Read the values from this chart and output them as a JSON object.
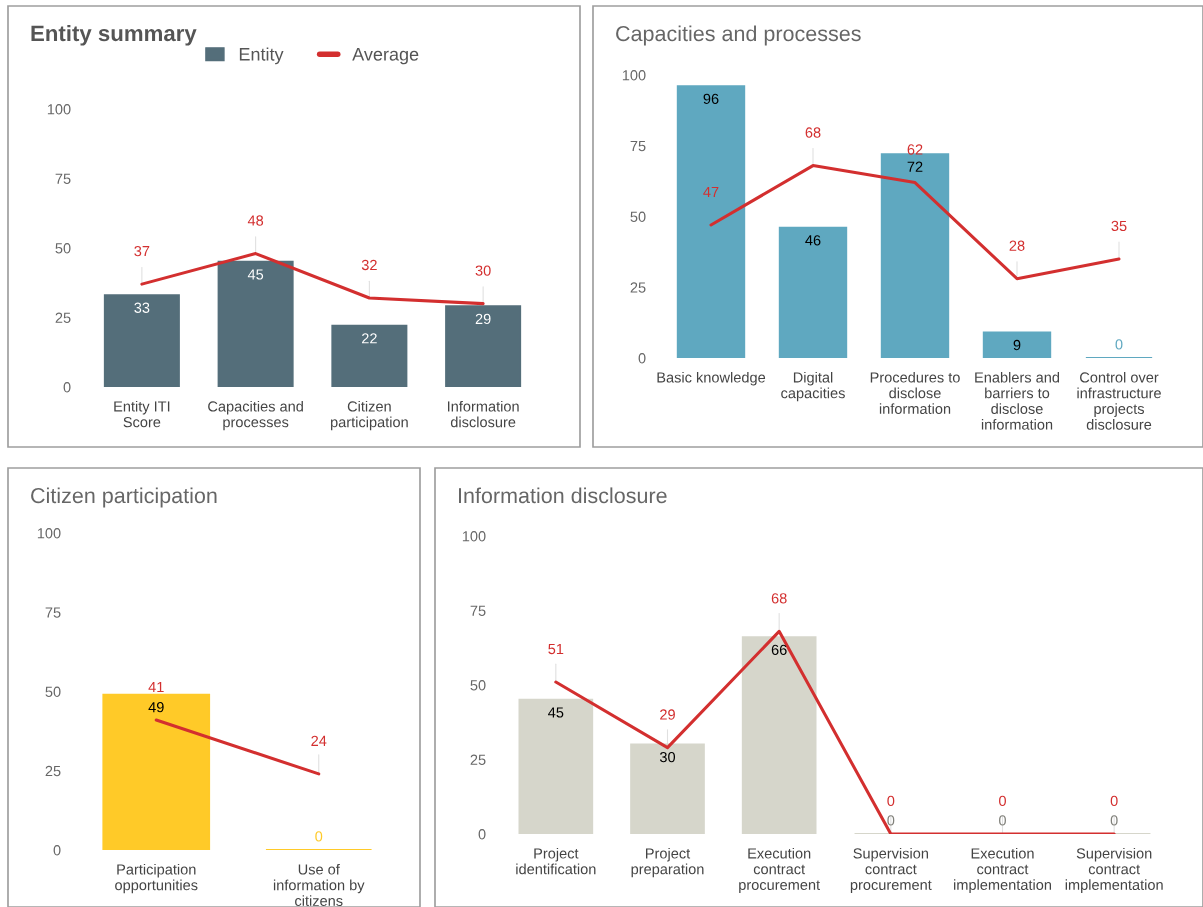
{
  "chart_data": [
    {
      "type": "bar",
      "title": "Entity summary",
      "categories": [
        "Entity ITI Score",
        "Capacities and processes",
        "Citizen participation",
        "Information disclosure"
      ],
      "ylim": [
        0,
        100
      ],
      "yticks": [
        0,
        25,
        50,
        75,
        100
      ],
      "grid": false,
      "legend": "top",
      "data_labels": true,
      "series": [
        {
          "name": "Entity",
          "color": "#546e7a",
          "values": [
            33,
            45,
            22,
            29
          ]
        },
        {
          "name": "Average",
          "type": "line",
          "color": "#d32f2f",
          "values": [
            37,
            48,
            32,
            30
          ]
        }
      ]
    },
    {
      "type": "bar",
      "title": "Capacities and processes",
      "categories": [
        "Basic knowledge",
        "Digital capacities",
        "Procedures to disclose information",
        "Enablers and barriers to disclose information",
        "Control over infrastructure projects disclosure"
      ],
      "ylim": [
        0,
        100
      ],
      "yticks": [
        0,
        25,
        50,
        75,
        100
      ],
      "grid": false,
      "data_labels": true,
      "series": [
        {
          "color": "#5fa8c0",
          "values": [
            96,
            46,
            72,
            9,
            0
          ]
        },
        {
          "type": "line",
          "color": "#d32f2f",
          "values": [
            47,
            68,
            62,
            28,
            35
          ]
        }
      ]
    },
    {
      "type": "bar",
      "title": "Citizen participation",
      "categories": [
        "Participation opportunities",
        "Use of information by citizens"
      ],
      "ylim": [
        0,
        100
      ],
      "yticks": [
        0,
        25,
        50,
        75,
        100
      ],
      "grid": false,
      "data_labels": true,
      "series": [
        {
          "color": "#ffca28",
          "values": [
            49,
            0
          ]
        },
        {
          "type": "line",
          "color": "#d32f2f",
          "values": [
            41,
            24
          ]
        }
      ]
    },
    {
      "type": "bar",
      "title": "Information disclosure",
      "categories": [
        "Project identification",
        "Project preparation",
        "Execution contract procurement",
        "Supervision contract procurement",
        "Execution contract implementation",
        "Supervision contract implementation"
      ],
      "ylim": [
        0,
        100
      ],
      "yticks": [
        0,
        25,
        50,
        75,
        100
      ],
      "grid": false,
      "data_labels": true,
      "series": [
        {
          "color": "#d6d6cb",
          "values": [
            45,
            30,
            66,
            0,
            0,
            0
          ]
        },
        {
          "type": "line",
          "color": "#d32f2f",
          "values": [
            51,
            29,
            68,
            0,
            0,
            0
          ]
        }
      ]
    }
  ]
}
